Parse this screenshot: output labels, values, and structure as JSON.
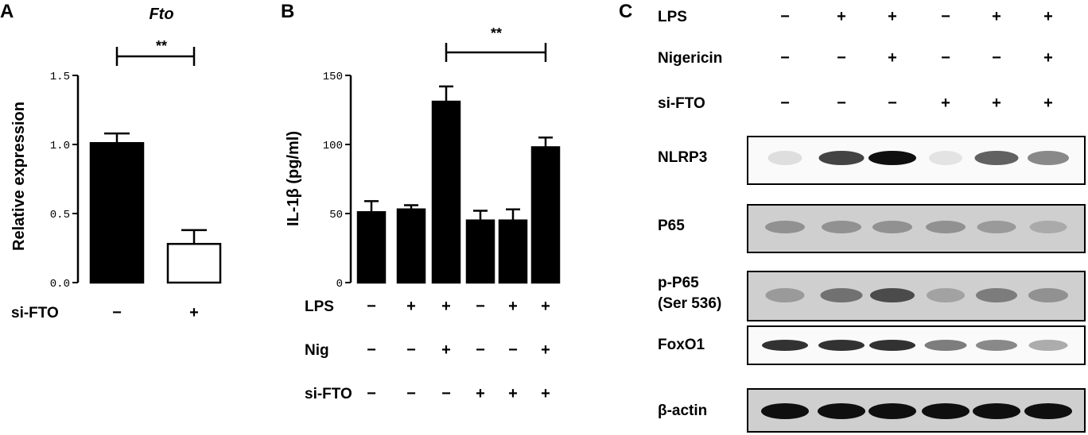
{
  "panels": {
    "a": "A",
    "b": "B",
    "c": "C"
  },
  "chart_data": [
    {
      "type": "bar",
      "title": "Fto",
      "ylabel": "Relative expression",
      "ylim": [
        0,
        1.5
      ],
      "yticks": [
        "0.0",
        "0.5",
        "1.0",
        "1.5"
      ],
      "categories": [
        "−",
        "+"
      ],
      "values": [
        1.01,
        0.28
      ],
      "errors": [
        0.07,
        0.1
      ],
      "fills": [
        "#000000",
        "#ffffff"
      ],
      "condition_rows": [
        {
          "label": "si-FTO",
          "signs": [
            "−",
            "+"
          ]
        }
      ],
      "significance": "**"
    },
    {
      "type": "bar",
      "ylabel": "IL-1β (pg/ml)",
      "ylim": [
        0,
        150
      ],
      "yticks": [
        "0",
        "50",
        "100",
        "150"
      ],
      "values": [
        51,
        53,
        131,
        45,
        45,
        98
      ],
      "errors": [
        8,
        3,
        11,
        7,
        8,
        7
      ],
      "condition_rows": [
        {
          "label": "LPS",
          "signs": [
            "−",
            "+",
            "+",
            "−",
            "+",
            "+"
          ]
        },
        {
          "label": "Nig",
          "signs": [
            "−",
            "−",
            "+",
            "−",
            "−",
            "+"
          ]
        },
        {
          "label": "si-FTO",
          "signs": [
            "−",
            "−",
            "−",
            "+",
            "+",
            "+"
          ]
        }
      ],
      "significance": "**"
    }
  ],
  "western_blot": {
    "condition_rows": [
      {
        "label": "LPS",
        "signs": [
          "−",
          "+",
          "+",
          "−",
          "+",
          "+"
        ]
      },
      {
        "label": "Nigericin",
        "signs": [
          "−",
          "−",
          "+",
          "−",
          "−",
          "+"
        ]
      },
      {
        "label": "si-FTO",
        "signs": [
          "−",
          "−",
          "−",
          "+",
          "+",
          "+"
        ]
      }
    ],
    "blots": [
      {
        "label": "NLRP3",
        "intensities": [
          0.15,
          0.85,
          1.0,
          0.1,
          0.75,
          0.6
        ]
      },
      {
        "label": "P65",
        "intensities": [
          0.5,
          0.5,
          0.5,
          0.5,
          0.45,
          0.35
        ]
      },
      {
        "label_lines": [
          "p-P65",
          "(Ser 536)"
        ],
        "intensities": [
          0.45,
          0.65,
          0.8,
          0.4,
          0.6,
          0.5
        ]
      },
      {
        "label": "FoxO1",
        "intensities": [
          0.9,
          0.9,
          0.9,
          0.65,
          0.6,
          0.45
        ]
      },
      {
        "label": "β-actin",
        "intensities": [
          1.0,
          1.0,
          1.0,
          1.0,
          1.0,
          1.0
        ]
      }
    ]
  }
}
